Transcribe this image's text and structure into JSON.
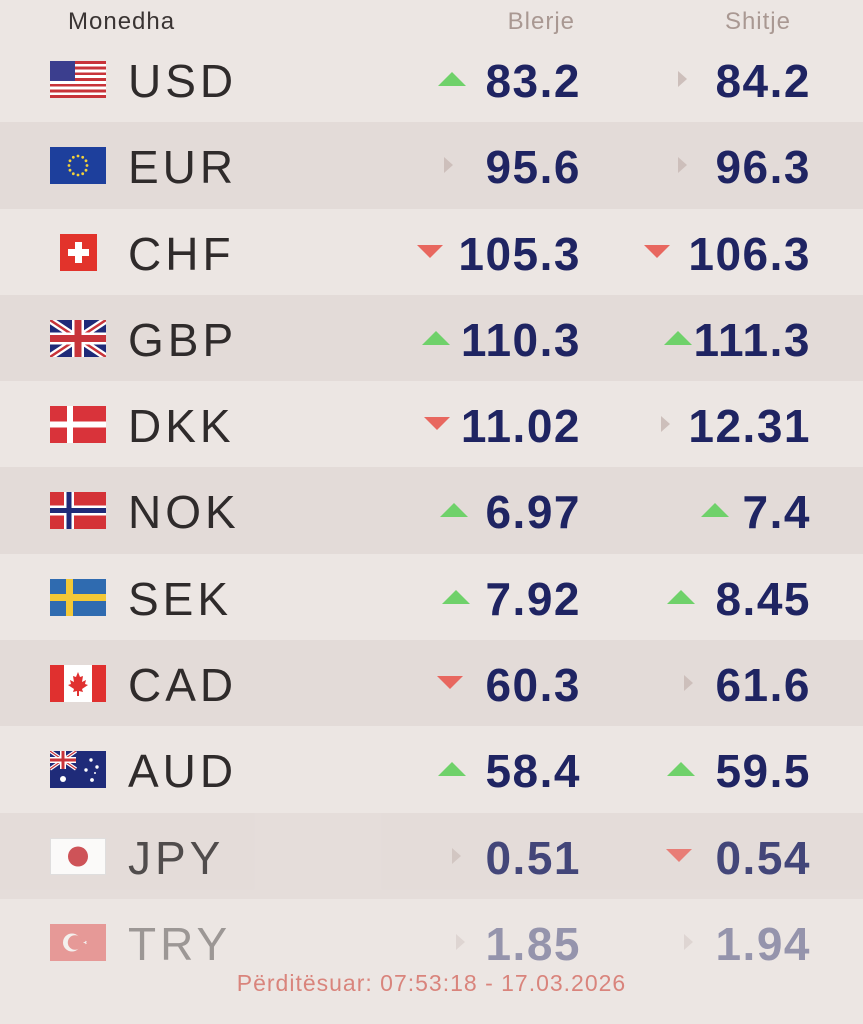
{
  "header": {
    "currency": "Monedha",
    "buy": "Blerje",
    "sell": "Shitje"
  },
  "rates": [
    {
      "code": "USD",
      "flag": "us-flag-icon",
      "buy": "83.2",
      "buy_trend": "up",
      "sell": "84.2",
      "sell_trend": "flat"
    },
    {
      "code": "EUR",
      "flag": "eu-flag-icon",
      "buy": "95.6",
      "buy_trend": "flat",
      "sell": "96.3",
      "sell_trend": "flat"
    },
    {
      "code": "CHF",
      "flag": "ch-flag-icon",
      "buy": "105.3",
      "buy_trend": "down",
      "sell": "106.3",
      "sell_trend": "down"
    },
    {
      "code": "GBP",
      "flag": "gb-flag-icon",
      "buy": "110.3",
      "buy_trend": "up",
      "sell": "111.3",
      "sell_trend": "up"
    },
    {
      "code": "DKK",
      "flag": "dk-flag-icon",
      "buy": "11.02",
      "buy_trend": "down",
      "sell": "12.31",
      "sell_trend": "flat"
    },
    {
      "code": "NOK",
      "flag": "no-flag-icon",
      "buy": "6.97",
      "buy_trend": "up",
      "sell": "7.4",
      "sell_trend": "up"
    },
    {
      "code": "SEK",
      "flag": "se-flag-icon",
      "buy": "7.92",
      "buy_trend": "up",
      "sell": "8.45",
      "sell_trend": "up"
    },
    {
      "code": "CAD",
      "flag": "ca-flag-icon",
      "buy": "60.3",
      "buy_trend": "down",
      "sell": "61.6",
      "sell_trend": "flat"
    },
    {
      "code": "AUD",
      "flag": "au-flag-icon",
      "buy": "58.4",
      "buy_trend": "up",
      "sell": "59.5",
      "sell_trend": "up"
    },
    {
      "code": "JPY",
      "flag": "jp-flag-icon",
      "buy": "0.51",
      "buy_trend": "flat",
      "sell": "0.54",
      "sell_trend": "down"
    },
    {
      "code": "TRY",
      "flag": "tr-flag-icon",
      "buy": "1.85",
      "buy_trend": "flat",
      "sell": "1.94",
      "sell_trend": "flat"
    }
  ],
  "footer": {
    "updated": "Përditësuar: 07:53:18 - 17.03.2026"
  },
  "colors": {
    "up": "#6fd16a",
    "down": "#e8675f",
    "flat": "#cdbfbb",
    "value": "#1f2462",
    "footer": "#d9847c"
  }
}
